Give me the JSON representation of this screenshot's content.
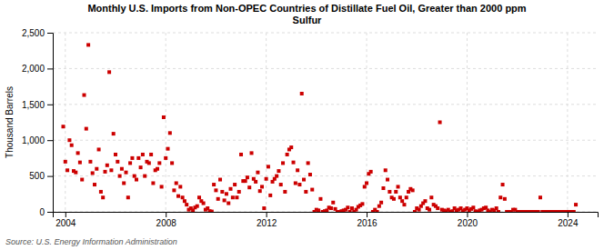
{
  "chart_data": {
    "type": "scatter",
    "title": "Monthly U.S. Imports from Non-OPEC Countries of Distillate Fuel Oil, Greater than 2000 ppm\nSulfur",
    "ylabel": "Thousand Barrels",
    "source": "Source: U.S. Energy Information Administration",
    "color": "#cc0000",
    "marker": "square",
    "grid": true,
    "xlim": [
      2003.5,
      2025.2
    ],
    "ylim": [
      0,
      2500
    ],
    "xticks": [
      2004,
      2008,
      2012,
      2016,
      2020,
      2024
    ],
    "yticks": [
      0,
      500,
      {
        "value": 1000,
        "label": "1,000"
      },
      {
        "value": 1500,
        "label": "1,500"
      },
      {
        "value": 2000,
        "label": "2,000"
      },
      {
        "value": 2500,
        "label": "2,500"
      }
    ],
    "x": [
      2003.917,
      2004.0,
      2004.083,
      2004.167,
      2004.25,
      2004.333,
      2004.417,
      2004.5,
      2004.583,
      2004.667,
      2004.75,
      2004.833,
      2004.917,
      2005.0,
      2005.083,
      2005.167,
      2005.25,
      2005.333,
      2005.417,
      2005.5,
      2005.583,
      2005.667,
      2005.75,
      2005.833,
      2005.917,
      2006.0,
      2006.083,
      2006.167,
      2006.25,
      2006.333,
      2006.417,
      2006.5,
      2006.583,
      2006.667,
      2006.75,
      2006.833,
      2006.917,
      2007.0,
      2007.083,
      2007.167,
      2007.25,
      2007.333,
      2007.417,
      2007.5,
      2007.583,
      2007.667,
      2007.75,
      2007.833,
      2007.917,
      2008.0,
      2008.083,
      2008.167,
      2008.25,
      2008.333,
      2008.417,
      2008.5,
      2008.583,
      2008.667,
      2008.75,
      2008.833,
      2008.917,
      2009.0,
      2009.083,
      2009.167,
      2009.25,
      2009.333,
      2009.417,
      2009.5,
      2009.583,
      2009.667,
      2009.75,
      2009.833,
      2009.917,
      2010.0,
      2010.083,
      2010.167,
      2010.25,
      2010.333,
      2010.417,
      2010.5,
      2010.583,
      2010.667,
      2010.75,
      2010.833,
      2010.917,
      2011.0,
      2011.083,
      2011.167,
      2011.25,
      2011.333,
      2011.417,
      2011.5,
      2011.583,
      2011.667,
      2011.75,
      2011.833,
      2011.917,
      2012.0,
      2012.083,
      2012.167,
      2012.25,
      2012.333,
      2012.417,
      2012.5,
      2012.583,
      2012.667,
      2012.75,
      2012.833,
      2012.917,
      2013.0,
      2013.083,
      2013.167,
      2013.25,
      2013.333,
      2013.417,
      2013.5,
      2013.583,
      2013.667,
      2013.75,
      2013.833,
      2013.917,
      2014.0,
      2014.083,
      2014.167,
      2014.25,
      2014.333,
      2014.417,
      2014.5,
      2014.583,
      2014.667,
      2014.75,
      2014.833,
      2014.917,
      2015.0,
      2015.083,
      2015.167,
      2015.25,
      2015.333,
      2015.417,
      2015.5,
      2015.583,
      2015.667,
      2015.75,
      2015.833,
      2015.917,
      2016.0,
      2016.083,
      2016.167,
      2016.25,
      2016.333,
      2016.417,
      2016.5,
      2016.583,
      2016.667,
      2016.75,
      2016.833,
      2016.917,
      2017.0,
      2017.083,
      2017.167,
      2017.25,
      2017.333,
      2017.417,
      2017.5,
      2017.583,
      2017.667,
      2017.75,
      2017.833,
      2017.917,
      2018.0,
      2018.083,
      2018.167,
      2018.25,
      2018.333,
      2018.417,
      2018.5,
      2018.583,
      2018.667,
      2018.75,
      2018.833,
      2018.917,
      2019.0,
      2019.083,
      2019.167,
      2019.25,
      2019.333,
      2019.417,
      2019.5,
      2019.583,
      2019.667,
      2019.75,
      2019.833,
      2019.917,
      2020.0,
      2020.083,
      2020.167,
      2020.25,
      2020.333,
      2020.417,
      2020.5,
      2020.583,
      2020.667,
      2020.75,
      2020.833,
      2020.917,
      2021.0,
      2021.083,
      2021.167,
      2021.25,
      2021.333,
      2021.417,
      2021.5,
      2021.583,
      2021.667,
      2021.75,
      2021.833,
      2021.917,
      2022.0,
      2022.083,
      2022.167,
      2022.25,
      2022.333,
      2022.417,
      2022.5,
      2022.583,
      2022.667,
      2022.75,
      2022.833,
      2022.917,
      2023.0,
      2023.083,
      2023.167,
      2023.25,
      2023.333,
      2023.417,
      2023.5,
      2023.583,
      2023.667,
      2023.75,
      2023.833,
      2023.917,
      2024.0,
      2024.083,
      2024.167,
      2024.25,
      2024.333
    ],
    "values": [
      1190,
      700,
      580,
      1000,
      930,
      570,
      550,
      820,
      690,
      450,
      1630,
      1160,
      2330,
      700,
      540,
      380,
      600,
      870,
      280,
      200,
      560,
      650,
      1950,
      580,
      1090,
      800,
      700,
      500,
      600,
      400,
      550,
      200,
      680,
      750,
      500,
      450,
      750,
      620,
      800,
      500,
      700,
      680,
      800,
      400,
      580,
      600,
      680,
      350,
      1320,
      750,
      880,
      1100,
      680,
      300,
      400,
      220,
      350,
      200,
      150,
      100,
      30,
      50,
      20,
      60,
      80,
      200,
      150,
      120,
      30,
      50,
      10,
      5,
      380,
      300,
      180,
      450,
      280,
      160,
      250,
      120,
      320,
      200,
      380,
      200,
      280,
      800,
      430,
      430,
      480,
      340,
      820,
      460,
      420,
      550,
      290,
      350,
      50,
      460,
      630,
      230,
      420,
      460,
      500,
      570,
      380,
      680,
      280,
      800,
      870,
      900,
      690,
      400,
      580,
      380,
      1650,
      450,
      280,
      680,
      520,
      310,
      0,
      30,
      20,
      180,
      0,
      10,
      20,
      60,
      50,
      130,
      40,
      0,
      0,
      10,
      20,
      30,
      60,
      0,
      50,
      0,
      30,
      70,
      90,
      110,
      350,
      400,
      530,
      560,
      0,
      30,
      0,
      80,
      130,
      330,
      580,
      450,
      280,
      200,
      180,
      280,
      350,
      200,
      150,
      100,
      200,
      280,
      320,
      300,
      0,
      50,
      30,
      80,
      120,
      150,
      50,
      30,
      200,
      100,
      80,
      50,
      1250,
      30,
      20,
      10,
      30,
      0,
      10,
      50,
      20,
      30,
      50,
      10,
      30,
      50,
      20,
      40,
      60,
      10,
      0,
      20,
      30,
      50,
      60,
      20,
      0,
      30,
      20,
      50,
      0,
      200,
      380,
      180,
      0,
      0,
      0,
      30,
      30,
      0,
      0,
      0,
      0,
      0,
      0,
      0,
      0,
      0,
      0,
      0,
      200,
      0,
      0,
      0,
      0,
      0,
      0,
      0,
      0,
      0,
      0,
      0,
      0,
      0,
      0,
      0,
      0,
      100
    ]
  }
}
